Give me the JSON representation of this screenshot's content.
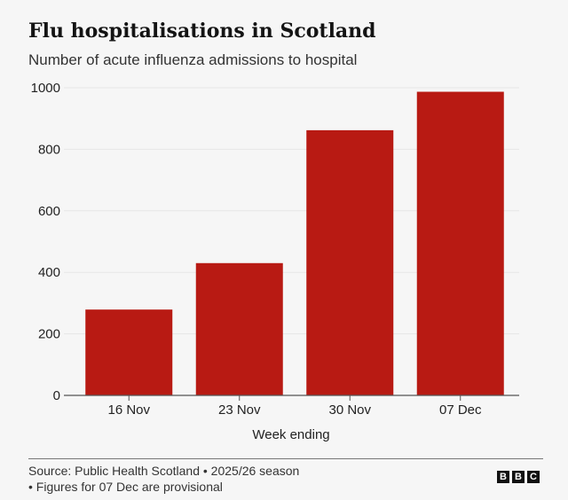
{
  "title": "Flu hospitalisations in Scotland",
  "subtitle": "Number of acute influenza admissions to hospital",
  "chart_data": {
    "type": "bar",
    "title": "Flu hospitalisations in Scotland",
    "subtitle": "Number of acute influenza admissions to hospital",
    "categories": [
      "16 Nov",
      "23 Nov",
      "30 Nov",
      "07 Dec"
    ],
    "values": [
      279,
      430,
      862,
      987
    ],
    "xlabel": "Week ending",
    "ylabel": "",
    "ylim": [
      0,
      1000
    ],
    "yticks": [
      0,
      200,
      400,
      600,
      800,
      1000
    ],
    "grid": true,
    "bar_color": "#b81a13"
  },
  "footer": {
    "source": "Source: Public Health Scotland • 2025/26 season",
    "note": "• Figures for 07 Dec are provisional",
    "logo": [
      "B",
      "B",
      "C"
    ]
  }
}
